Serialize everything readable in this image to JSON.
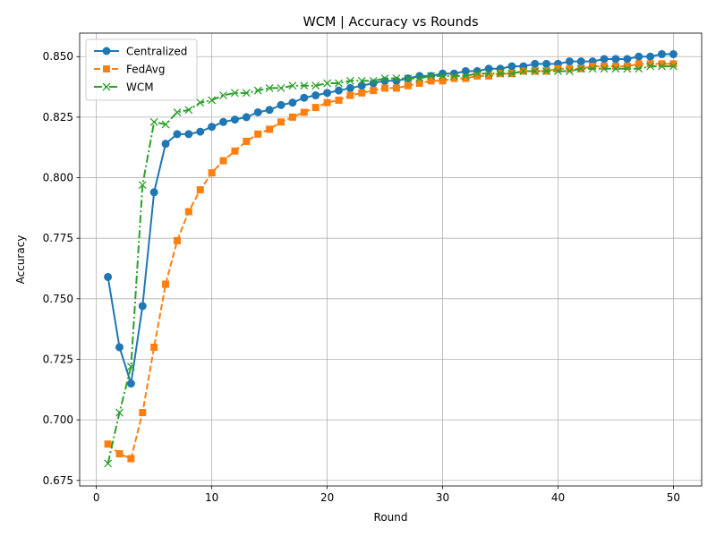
{
  "chart_data": {
    "type": "line",
    "title": "WCM | Accuracy vs Rounds",
    "xlabel": "Round",
    "ylabel": "Accuracy",
    "xlim": [
      -1.45,
      52.45
    ],
    "ylim": [
      0.6727,
      0.8597
    ],
    "xticks": [
      0,
      10,
      20,
      30,
      40,
      50
    ],
    "xtick_labels": [
      "0",
      "10",
      "20",
      "30",
      "40",
      "50"
    ],
    "yticks": [
      0.675,
      0.7,
      0.725,
      0.75,
      0.775,
      0.8,
      0.825,
      0.85
    ],
    "ytick_labels": [
      "0.675",
      "0.700",
      "0.725",
      "0.750",
      "0.775",
      "0.800",
      "0.825",
      "0.850"
    ],
    "grid": true,
    "legend_position": "upper-left",
    "x": [
      1,
      2,
      3,
      4,
      5,
      6,
      7,
      8,
      9,
      10,
      11,
      12,
      13,
      14,
      15,
      16,
      17,
      18,
      19,
      20,
      21,
      22,
      23,
      24,
      25,
      26,
      27,
      28,
      29,
      30,
      31,
      32,
      33,
      34,
      35,
      36,
      37,
      38,
      39,
      40,
      41,
      42,
      43,
      44,
      45,
      46,
      47,
      48,
      49,
      50
    ],
    "series": [
      {
        "name": "Centralized",
        "color": "#1f77b4",
        "line_style": "solid",
        "marker": "circle",
        "values": [
          0.759,
          0.73,
          0.715,
          0.747,
          0.794,
          0.814,
          0.818,
          0.818,
          0.819,
          0.821,
          0.823,
          0.824,
          0.825,
          0.827,
          0.828,
          0.83,
          0.831,
          0.833,
          0.834,
          0.835,
          0.836,
          0.837,
          0.838,
          0.839,
          0.84,
          0.84,
          0.841,
          0.842,
          0.842,
          0.843,
          0.843,
          0.844,
          0.844,
          0.845,
          0.845,
          0.846,
          0.846,
          0.847,
          0.847,
          0.847,
          0.848,
          0.848,
          0.848,
          0.849,
          0.849,
          0.849,
          0.85,
          0.85,
          0.851,
          0.851
        ]
      },
      {
        "name": "FedAvg",
        "color": "#ff7f0e",
        "line_style": "dashed",
        "marker": "square",
        "values": [
          0.69,
          0.686,
          0.684,
          0.703,
          0.73,
          0.756,
          0.774,
          0.786,
          0.795,
          0.802,
          0.807,
          0.811,
          0.815,
          0.818,
          0.82,
          0.823,
          0.825,
          0.827,
          0.829,
          0.831,
          0.832,
          0.834,
          0.835,
          0.836,
          0.837,
          0.837,
          0.838,
          0.839,
          0.84,
          0.84,
          0.841,
          0.841,
          0.842,
          0.842,
          0.843,
          0.843,
          0.844,
          0.844,
          0.844,
          0.845,
          0.845,
          0.845,
          0.846,
          0.846,
          0.846,
          0.846,
          0.847,
          0.847,
          0.847,
          0.847
        ]
      },
      {
        "name": "WCM",
        "color": "#2ca02c",
        "line_style": "dashdot",
        "marker": "x",
        "values": [
          0.682,
          0.703,
          0.722,
          0.797,
          0.823,
          0.822,
          0.827,
          0.828,
          0.831,
          0.832,
          0.834,
          0.835,
          0.835,
          0.836,
          0.837,
          0.837,
          0.838,
          0.838,
          0.838,
          0.839,
          0.839,
          0.84,
          0.84,
          0.84,
          0.841,
          0.841,
          0.841,
          0.841,
          0.842,
          0.842,
          0.842,
          0.842,
          0.843,
          0.843,
          0.843,
          0.843,
          0.844,
          0.844,
          0.844,
          0.844,
          0.844,
          0.845,
          0.845,
          0.845,
          0.845,
          0.845,
          0.845,
          0.846,
          0.846,
          0.846
        ]
      }
    ]
  }
}
